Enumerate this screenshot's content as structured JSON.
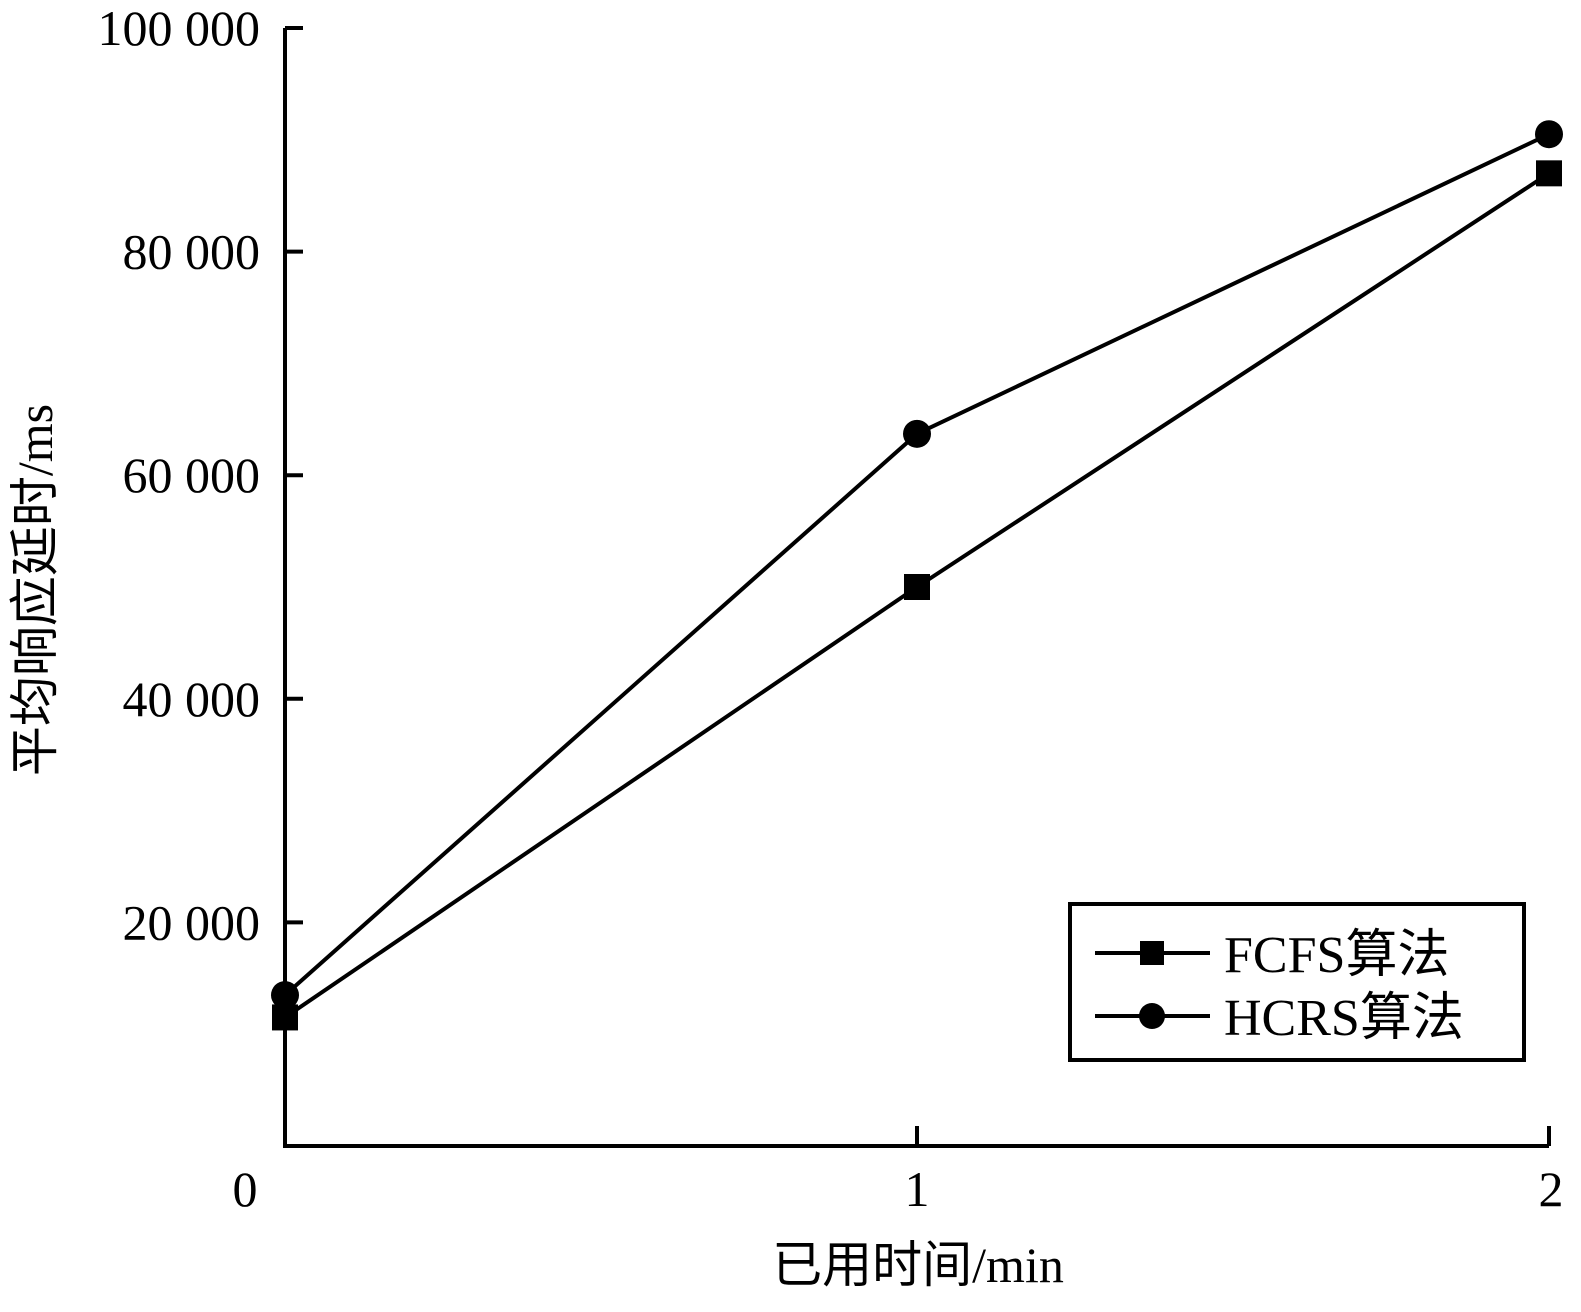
{
  "chart_data": {
    "type": "line",
    "title": "",
    "xlabel": "已用时间/min",
    "ylabel": "平均响应延时/ms",
    "x": [
      0,
      1,
      2
    ],
    "xlim": [
      0,
      2
    ],
    "ylim": [
      0,
      100000
    ],
    "x_ticks": [
      0,
      1,
      2
    ],
    "x_tick_labels": [
      "0",
      "1",
      "2"
    ],
    "y_ticks": [
      20000,
      40000,
      60000,
      80000,
      100000
    ],
    "y_tick_labels": [
      "20 000",
      "40 000",
      "60 000",
      "80 000",
      "100 000"
    ],
    "grid": false,
    "legend_position": "bottom-right",
    "series": [
      {
        "name": "FCFS算法",
        "marker": "square",
        "color": "#000000",
        "values": [
          11500,
          50000,
          87000
        ]
      },
      {
        "name": "HCRS算法",
        "marker": "circle",
        "color": "#000000",
        "values": [
          13500,
          63700,
          90500
        ]
      }
    ]
  }
}
